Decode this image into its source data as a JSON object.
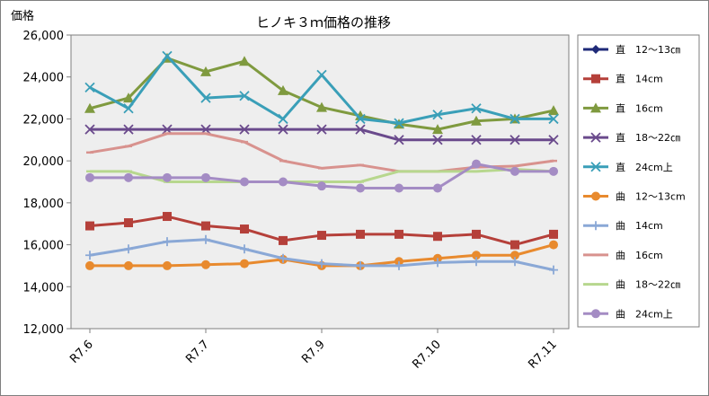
{
  "chart_data": {
    "type": "line",
    "title": "ヒノキ３ｍ価格の推移",
    "ylabel": "価格",
    "xlabel": "",
    "ylim": [
      12000,
      26000
    ],
    "yticks": [
      "12,000",
      "14,000",
      "16,000",
      "18,000",
      "20,000",
      "22,000",
      "24,000",
      "26,000"
    ],
    "ytick_values": [
      12000,
      14000,
      16000,
      18000,
      20000,
      22000,
      24000,
      26000
    ],
    "x_tick_labels": [
      "R7.6",
      "R7.7",
      "R7.9",
      "R7.10",
      "R7.11"
    ],
    "x_tick_positions": [
      0,
      3,
      6,
      9,
      12
    ],
    "grid": false,
    "plot_background": "#eeeeee",
    "legend_placement": "right",
    "series": [
      {
        "name": "直　12～13㎝",
        "color": "#1f2a78",
        "marker": "diamond",
        "values": [
          null,
          null,
          null,
          null,
          null,
          null,
          null,
          null,
          null,
          null,
          null,
          null,
          null
        ]
      },
      {
        "name": "直　14cm",
        "color": "#b5403a",
        "marker": "square",
        "values": [
          16900,
          17050,
          17350,
          16900,
          16750,
          16200,
          16450,
          16500,
          16500,
          16400,
          16500,
          16000,
          16500
        ]
      },
      {
        "name": "直　16cm",
        "color": "#7f9a3f",
        "marker": "triangle",
        "values": [
          22500,
          23000,
          24900,
          24250,
          24750,
          23350,
          22550,
          22150,
          21750,
          21500,
          21900,
          22000,
          22400
        ]
      },
      {
        "name": "直　18～22㎝",
        "color": "#6a4a8c",
        "marker": "x",
        "values": [
          21500,
          21500,
          21500,
          21500,
          21500,
          21500,
          21500,
          21500,
          21000,
          21000,
          21000,
          21000,
          21000
        ]
      },
      {
        "name": "直　24cm上",
        "color": "#3a9fb8",
        "marker": "x",
        "values": [
          23500,
          22500,
          25000,
          23000,
          23100,
          22000,
          24100,
          22000,
          21800,
          22200,
          22500,
          22000,
          22000
        ]
      },
      {
        "name": "曲　12～13cm",
        "color": "#e88a2e",
        "marker": "circle",
        "values": [
          15000,
          15000,
          15000,
          15050,
          15100,
          15300,
          15000,
          15000,
          15200,
          15350,
          15500,
          15500,
          16000
        ]
      },
      {
        "name": "曲　14cm",
        "color": "#8aa8d6",
        "marker": "plus",
        "values": [
          15500,
          15800,
          16150,
          16250,
          15800,
          15350,
          15100,
          15000,
          15000,
          15150,
          15200,
          15200,
          14800
        ]
      },
      {
        "name": "曲　16cm",
        "color": "#d8928e",
        "marker": "dash",
        "values": [
          20400,
          20700,
          21300,
          21300,
          20900,
          20000,
          19650,
          19800,
          19500,
          19500,
          19700,
          19750,
          20000
        ]
      },
      {
        "name": "曲　18～22㎝",
        "color": "#b7d78e",
        "marker": "dash",
        "values": [
          19500,
          19500,
          19000,
          19000,
          19000,
          19000,
          19000,
          19000,
          19500,
          19500,
          19500,
          19600,
          19500
        ]
      },
      {
        "name": "曲　24cm上",
        "color": "#a48cc4",
        "marker": "circle",
        "values": [
          19200,
          19200,
          19200,
          19200,
          19000,
          19000,
          18800,
          18700,
          18700,
          18700,
          19850,
          19500,
          19500
        ]
      }
    ]
  }
}
